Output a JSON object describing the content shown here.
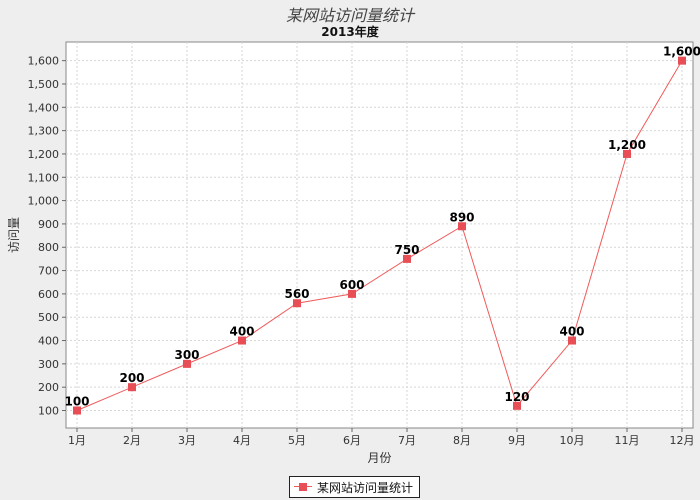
{
  "chart_data": {
    "type": "line",
    "title": "某网站访问量统计",
    "subtitle": "2013年度",
    "xlabel": "月份",
    "ylabel": "访问量",
    "categories": [
      "1月",
      "2月",
      "3月",
      "4月",
      "5月",
      "6月",
      "7月",
      "8月",
      "9月",
      "10月",
      "11月",
      "12月"
    ],
    "series": [
      {
        "name": "某网站访问量统计",
        "values": [
          100,
          200,
          300,
          400,
          560,
          600,
          750,
          890,
          120,
          400,
          1200,
          1600
        ],
        "color": "#e84e55"
      }
    ],
    "data_labels": [
      "100",
      "200",
      "300",
      "400",
      "560",
      "600",
      "750",
      "890",
      "120",
      "400",
      "1,200",
      "1,600"
    ],
    "yticks": [
      100,
      200,
      300,
      400,
      500,
      600,
      700,
      800,
      900,
      1000,
      1100,
      1200,
      1300,
      1400,
      1500,
      1600
    ],
    "ytick_labels": [
      "100",
      "200",
      "300",
      "400",
      "500",
      "600",
      "700",
      "800",
      "900",
      "1,000",
      "1,100",
      "1,200",
      "1,300",
      "1,400",
      "1,500",
      "1,600"
    ],
    "ylim": [
      25,
      1680
    ],
    "grid": true,
    "legend_position": "bottom-center",
    "line_color": "#f05a5a",
    "marker_color": "#e84e55"
  }
}
